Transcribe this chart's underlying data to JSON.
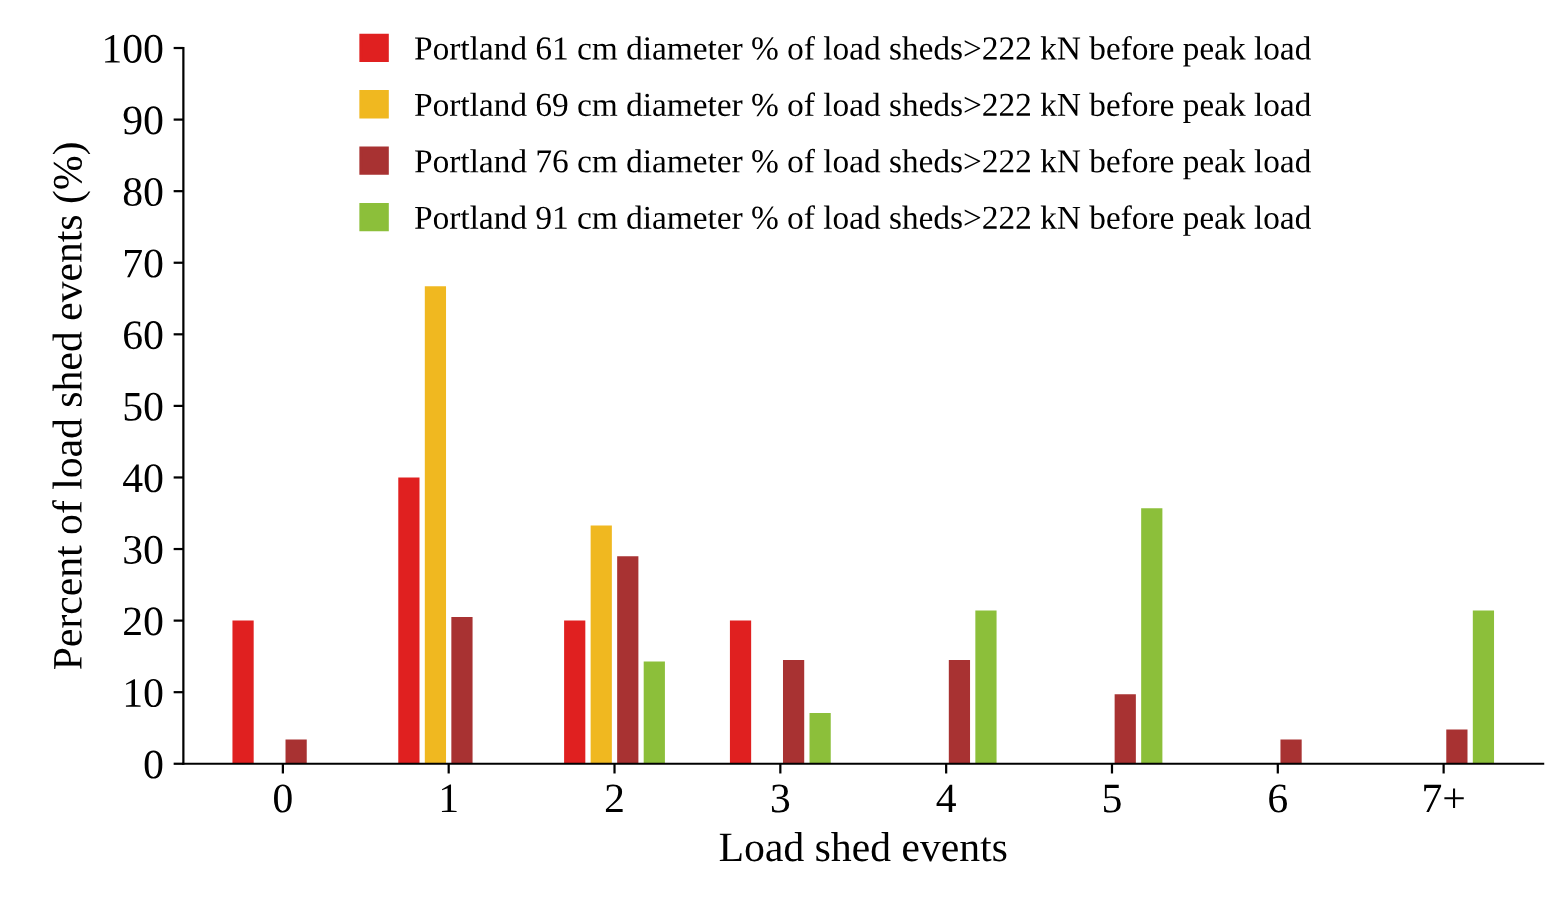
{
  "chart_data": {
    "type": "bar",
    "xlabel": "Load shed events",
    "ylabel": "Percent of load shed events (%)",
    "categories": [
      "0",
      "1",
      "2",
      "3",
      "4",
      "5",
      "6",
      "7+"
    ],
    "series": [
      {
        "name": "Portland 61 cm diameter % of load sheds>222 kN before peak load",
        "color": "#e02020",
        "values": [
          20,
          40,
          20,
          20,
          0,
          0,
          0,
          0
        ]
      },
      {
        "name": "Portland 69 cm diameter % of load sheds>222 kN before peak load",
        "color": "#f0b820",
        "values": [
          0,
          66.7,
          33.3,
          0,
          0,
          0,
          0,
          0
        ]
      },
      {
        "name": "Portland 76 cm diameter % of load sheds>222 kN before peak load",
        "color": "#a83232",
        "values": [
          3.4,
          20.5,
          29,
          14.5,
          14.5,
          9.7,
          3.4,
          4.8
        ]
      },
      {
        "name": "Portland 91 cm diameter % of load sheds>222 kN before peak load",
        "color": "#8cbf3a",
        "values": [
          0,
          0,
          14.3,
          7.1,
          21.4,
          35.7,
          0,
          21.4
        ]
      }
    ],
    "ylim": [
      0,
      100
    ],
    "yticks": [
      0,
      10,
      20,
      30,
      40,
      50,
      60,
      70,
      80,
      90,
      100
    ],
    "grid": false,
    "legend": "top"
  }
}
